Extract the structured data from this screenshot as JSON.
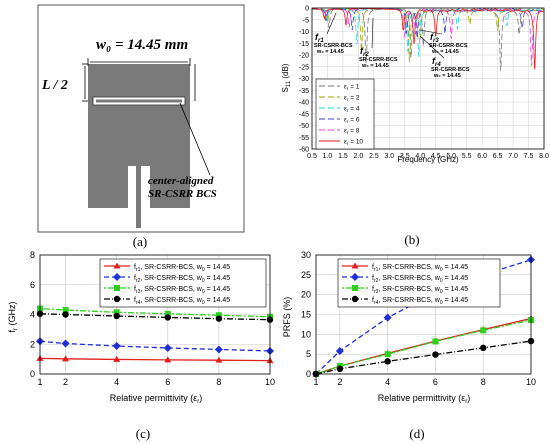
{
  "panel_labels": {
    "a": "(a)",
    "b": "(b)",
    "c": "(c)",
    "d": "(d)"
  },
  "antenna": {
    "width_label": "w₀ = 14.45 mm",
    "length_label": "L / 2",
    "slot_label_line1": "center-aligned",
    "slot_label_line2": "SR-CSRR BCS"
  },
  "colors": {
    "red": "#e0201c",
    "blue": "#1f2fd6",
    "green": "#2fcf1f",
    "black": "#000000",
    "cyan": "#22d4e6",
    "magenta": "#e040e0",
    "antenna": "#7a7a7a"
  },
  "chart_data": [
    {
      "type": "line",
      "id": "b",
      "xlabel": "Frequency (GHz)",
      "ylabel": "S11 (dB)",
      "xlim": [
        0.5,
        8.0
      ],
      "ylim": [
        -60,
        0
      ],
      "xticks": [
        "0.5",
        "1.0",
        "1.5",
        "2.0",
        "2.5",
        "3.0",
        "3.5",
        "4.0",
        "4.5",
        "5.0",
        "5.5",
        "6.0",
        "6.5",
        "7.0",
        "7.5",
        "8.0"
      ],
      "yticks": [
        "0",
        "-5",
        "-10",
        "-15",
        "-20",
        "-25",
        "-30",
        "-35",
        "-40",
        "-45",
        "-50",
        "-55",
        "-60"
      ],
      "grid": true,
      "legend": [
        "εr = 1",
        "εr = 2",
        "εr = 4",
        "εr = 6",
        "εr = 8",
        "εr = 10"
      ],
      "annotations": [
        {
          "f": "f",
          "sub": "r1",
          "l2": "SR-CSRR-BCS",
          "l3": "w₀ = 14.45"
        },
        {
          "f": "f",
          "sub": "r2",
          "l2": "SR-CSRR-BCS",
          "l3": "w₀ = 14.45"
        },
        {
          "f": "f",
          "sub": "r3",
          "l2": "SR-CSRR-BCS",
          "l3": "w₀ = 14.45"
        },
        {
          "f": "f",
          "sub": "r4",
          "l2": "SR-CSRR-BCS",
          "l3": "w₀ = 14.45"
        }
      ]
    },
    {
      "type": "line",
      "id": "c",
      "xlabel": "Relative permittivity (εr)",
      "ylabel": "fr (GHz)",
      "xlim": [
        1,
        10
      ],
      "ylim": [
        0,
        8
      ],
      "xticks": [
        1,
        2,
        4,
        6,
        8,
        10
      ],
      "yticks": [
        0,
        2,
        4,
        6,
        8
      ],
      "grid": true,
      "legend_position": "top-right",
      "x": [
        1,
        2,
        4,
        6,
        8,
        10
      ],
      "series": [
        {
          "name": "fr1, SR-CSRR-BCS, w0 = 14.45",
          "values": [
            1.05,
            1.02,
            0.98,
            0.95,
            0.93,
            0.9
          ]
        },
        {
          "name": "fr2, SR-CSRR-BCS, w0 = 14.45",
          "values": [
            2.2,
            2.05,
            1.88,
            1.75,
            1.65,
            1.55
          ]
        },
        {
          "name": "fr3, SR-CSRR-BCS, w0 = 14.45",
          "values": [
            4.4,
            4.3,
            4.15,
            4.05,
            3.95,
            3.85
          ]
        },
        {
          "name": "fr4, SR-CSRR-BCS, w0 = 14.45",
          "values": [
            4.05,
            4.0,
            3.9,
            3.8,
            3.72,
            3.65
          ]
        }
      ]
    },
    {
      "type": "line",
      "id": "d",
      "xlabel": "Relative permittivity (εr)",
      "ylabel": "PRFS (%)",
      "xlim": [
        1,
        10
      ],
      "ylim": [
        0,
        30
      ],
      "xticks": [
        1,
        2,
        4,
        6,
        8,
        10
      ],
      "yticks": [
        0,
        5,
        10,
        15,
        20,
        25,
        30
      ],
      "grid": true,
      "legend_position": "top-left",
      "x": [
        1,
        2,
        4,
        6,
        8,
        10
      ],
      "series": [
        {
          "name": "fr1, SR-CSRR-BCS, w0 = 14.45",
          "values": [
            0,
            2.0,
            5.2,
            8.3,
            11.2,
            14.0
          ]
        },
        {
          "name": "fr2, SR-CSRR-BCS, w0 = 14.45",
          "values": [
            0,
            5.8,
            14.2,
            20.5,
            25.0,
            28.8
          ]
        },
        {
          "name": "fr3, SR-CSRR-BCS, w0 = 14.45",
          "values": [
            0,
            2.0,
            5.0,
            8.2,
            11.0,
            13.6
          ]
        },
        {
          "name": "fr4, SR-CSRR-BCS, w0 = 14.45",
          "values": [
            0,
            1.3,
            3.2,
            4.9,
            6.6,
            8.3
          ]
        }
      ]
    }
  ]
}
